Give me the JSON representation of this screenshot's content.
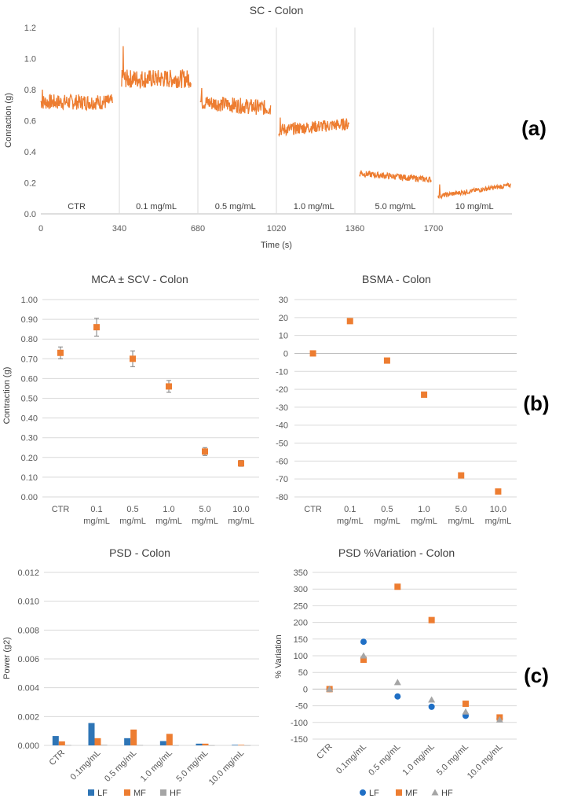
{
  "panel_labels": {
    "a": "(a)",
    "b": "(b)",
    "c": "(c)"
  },
  "colors": {
    "orange": "#ED7D31",
    "blue": "#2E75B6",
    "lf_blue": "#1F6FC5",
    "gray": "#A5A5A5",
    "grid": "#D9D9D9",
    "err": "#7F7F7F"
  },
  "chart_data": [
    {
      "id": "sc",
      "type": "line",
      "title": "SC - Colon",
      "xlabel": "Time (s)",
      "ylabel": "Conraction (g)",
      "xlim": [
        0,
        2040
      ],
      "ylim": [
        0,
        1.2
      ],
      "xticks": [
        "0",
        "340",
        "680",
        "1020",
        "1360",
        "1700"
      ],
      "yticks": [
        "0.0",
        "0.2",
        "0.4",
        "0.6",
        "0.8",
        "1.0",
        "1.2"
      ],
      "segments": [
        {
          "label": "CTR",
          "start": 0,
          "end": 310,
          "level": 0.72,
          "noise": 0.05,
          "trend": 0.0,
          "peak": 0.8
        },
        {
          "label": "0.1 mg/mL",
          "start": 350,
          "end": 650,
          "level": 0.87,
          "noise": 0.06,
          "trend": 0.0,
          "peak": 1.08
        },
        {
          "label": "0.5 mg/mL",
          "start": 690,
          "end": 995,
          "level": 0.7,
          "noise": 0.05,
          "trend": -0.02,
          "peak": 0.81
        },
        {
          "label": "1.0 mg/mL",
          "start": 1030,
          "end": 1335,
          "level": 0.56,
          "noise": 0.04,
          "trend": 0.02,
          "peak": 0.62
        },
        {
          "label": "5.0 mg/mL",
          "start": 1380,
          "end": 1690,
          "level": 0.24,
          "noise": 0.02,
          "trend": -0.02,
          "peak": 0.28
        },
        {
          "label": "10 mg/mL",
          "start": 1720,
          "end": 2035,
          "level": 0.15,
          "noise": 0.015,
          "trend": 0.035,
          "peak": 0.19
        }
      ]
    },
    {
      "id": "mca",
      "type": "scatter",
      "title": "MCA ± SCV - Colon",
      "ylabel": "Contraction (g)",
      "categories": [
        [
          "CTR"
        ],
        [
          "0.1",
          "mg/mL"
        ],
        [
          "0.5",
          "mg/mL"
        ],
        [
          "1.0",
          "mg/mL"
        ],
        [
          "5.0",
          "mg/mL"
        ],
        [
          "10.0",
          "mg/mL"
        ]
      ],
      "values": [
        0.73,
        0.86,
        0.7,
        0.56,
        0.23,
        0.17
      ],
      "errors": [
        0.03,
        0.045,
        0.04,
        0.03,
        0.02,
        0.015
      ],
      "ylim": [
        0,
        1.0
      ],
      "yticks": [
        "0.00",
        "0.10",
        "0.20",
        "0.30",
        "0.40",
        "0.50",
        "0.60",
        "0.70",
        "0.80",
        "0.90",
        "1.00"
      ]
    },
    {
      "id": "bsma",
      "type": "scatter",
      "title": "BSMA - Colon",
      "categories": [
        [
          "CTR"
        ],
        [
          "0.1",
          "mg/mL"
        ],
        [
          "0.5",
          "mg/mL"
        ],
        [
          "1.0",
          "mg/mL"
        ],
        [
          "5.0",
          "mg/mL"
        ],
        [
          "10.0",
          "mg/mL"
        ]
      ],
      "values": [
        0,
        18,
        -4,
        -23,
        -68,
        -77
      ],
      "ylim": [
        -80,
        30
      ],
      "yticks": [
        "-80",
        "-70",
        "-60",
        "-50",
        "-40",
        "-30",
        "-20",
        "-10",
        "0",
        "10",
        "20",
        "30"
      ]
    },
    {
      "id": "psd",
      "type": "bar",
      "title": "PSD - Colon",
      "ylabel": "Power (g2)",
      "categories": [
        "CTR",
        "0.1mg/mL",
        "0.5 mg/mL",
        "1.0 mg/mL",
        "5.0 mg/mL",
        "10.0 mg/mL"
      ],
      "series": [
        {
          "name": "LF",
          "values": [
            0.00065,
            0.00155,
            0.0005,
            0.0003,
            0.00012,
            4e-05
          ]
        },
        {
          "name": "MF",
          "values": [
            0.00028,
            0.0005,
            0.0011,
            0.0008,
            0.00012,
            4e-05
          ]
        },
        {
          "name": "HF",
          "values": [
            2e-05,
            4e-05,
            2e-05,
            1e-05,
            1e-05,
            1e-05
          ]
        }
      ],
      "ylim": [
        0,
        0.012
      ],
      "yticks": [
        "0.000",
        "0.002",
        "0.004",
        "0.006",
        "0.008",
        "0.010",
        "0.012"
      ],
      "legend": [
        "LF",
        "MF",
        "HF"
      ]
    },
    {
      "id": "psdvar",
      "type": "scatter",
      "title": "PSD %Variation - Colon",
      "ylabel": "% Variation",
      "categories": [
        "CTR",
        "0.1mg/mL",
        "0.5 mg/mL",
        "1.0 mg/mL",
        "5.0 mg/mL",
        "10.0 mg/mL"
      ],
      "series": [
        {
          "name": "LF",
          "values": [
            0,
            142,
            -22,
            -53,
            -80,
            -88
          ]
        },
        {
          "name": "MF",
          "values": [
            0,
            88,
            307,
            207,
            -44,
            -85
          ]
        },
        {
          "name": "HF",
          "values": [
            0,
            100,
            20,
            -32,
            -68,
            -92
          ]
        }
      ],
      "ylim": [
        -150,
        350
      ],
      "yticks": [
        "-150",
        "-100",
        "-50",
        "0",
        "50",
        "100",
        "150",
        "200",
        "250",
        "300",
        "350"
      ],
      "legend": [
        "LF",
        "MF",
        "HF"
      ]
    }
  ]
}
